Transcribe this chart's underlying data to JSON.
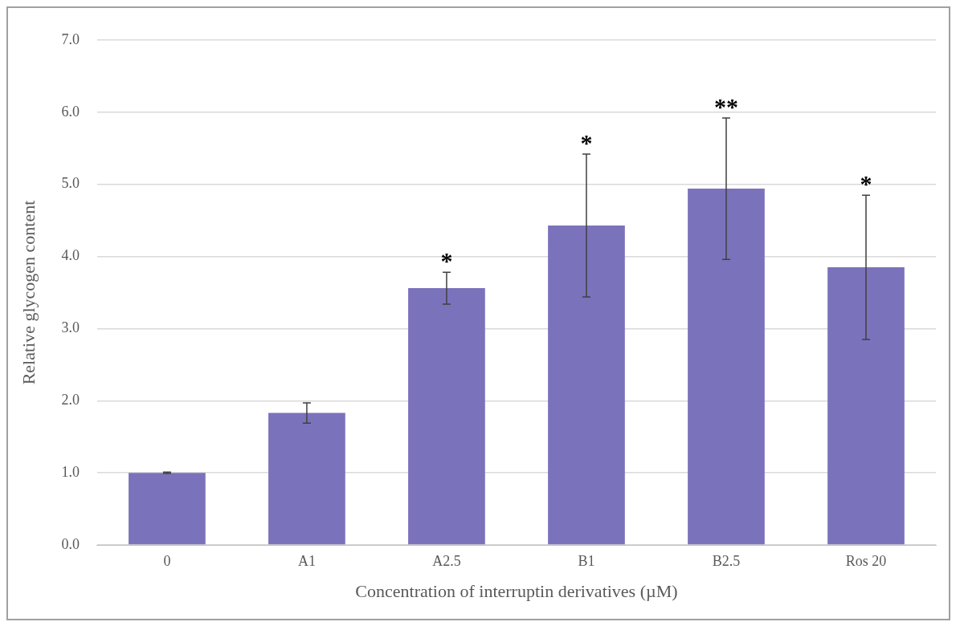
{
  "chart_data": {
    "type": "bar",
    "xlabel": "Concentration of interruptin derivatives (µM)",
    "ylabel": "Relative glycogen content",
    "categories": [
      "0",
      "A1",
      "A2.5",
      "B1",
      "B2.5",
      "Ros 20"
    ],
    "values": [
      1.0,
      1.83,
      3.56,
      4.43,
      4.94,
      3.85
    ],
    "errors": [
      0.01,
      0.14,
      0.22,
      0.99,
      0.98,
      1.0
    ],
    "color": "#7b72bc",
    "ylim": [
      0,
      7
    ],
    "yticks": [
      {
        "value": 0,
        "label": "0.0"
      },
      {
        "value": 1,
        "label": "1.0"
      },
      {
        "value": 2,
        "label": "2.0"
      },
      {
        "value": 3,
        "label": "3.0"
      },
      {
        "value": 4,
        "label": "4.0"
      },
      {
        "value": 5,
        "label": "5.0"
      },
      {
        "value": 6,
        "label": "6.0"
      },
      {
        "value": 7,
        "label": "7.0"
      }
    ],
    "grid": "y",
    "annotations": [
      {
        "text": "*",
        "x": "A2.5",
        "y": 3.78
      },
      {
        "text": "*",
        "x": "B1",
        "y": 5.42
      },
      {
        "text": "**",
        "x": "B2.5",
        "y": 5.92
      },
      {
        "text": "*",
        "x": "Ros 20",
        "y": 4.85
      }
    ]
  }
}
